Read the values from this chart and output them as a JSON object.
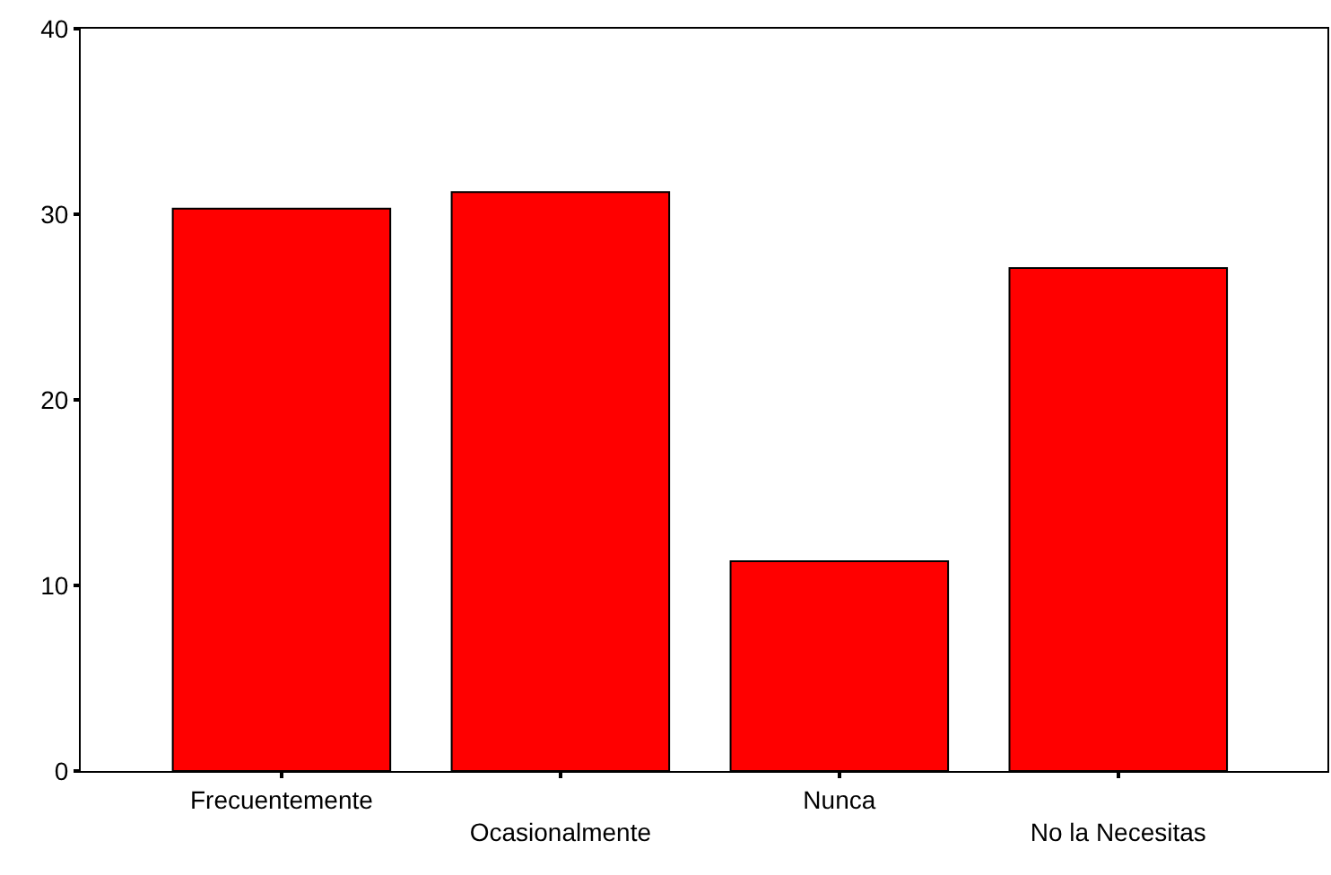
{
  "chart_data": {
    "type": "bar",
    "categories": [
      "Frecuentemente",
      "Ocasionalmente",
      "Nunca",
      "No la Necesitas"
    ],
    "values": [
      30.3,
      31.2,
      11.3,
      27.1
    ],
    "color": "#ff0000",
    "ylim": [
      0,
      40
    ],
    "yticks": [
      0,
      10,
      20,
      30,
      40
    ],
    "grid": false,
    "legend": false
  }
}
